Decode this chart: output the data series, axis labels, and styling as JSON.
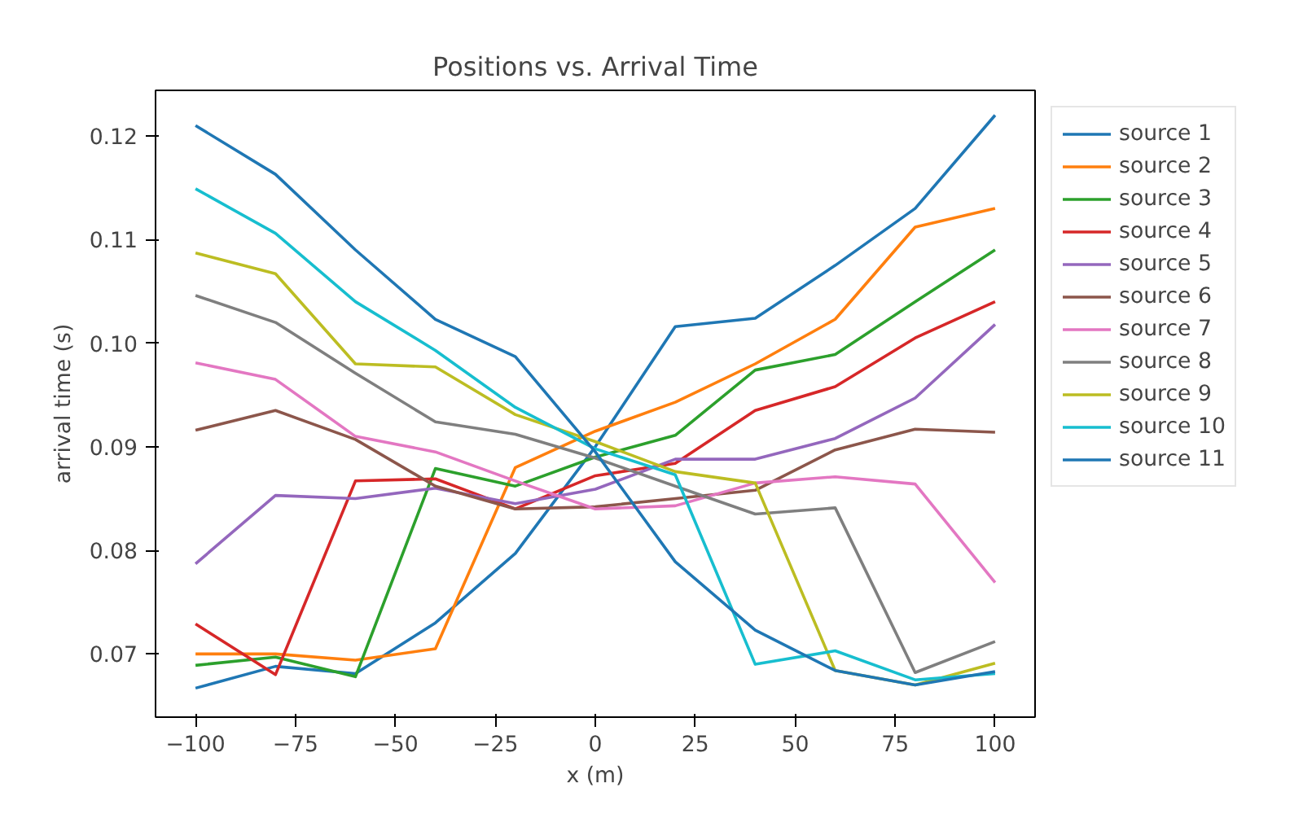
{
  "chart_data": {
    "type": "line",
    "title": "Positions vs. Arrival Time",
    "xlabel": "x (m)",
    "ylabel": "arrival time (s)",
    "x": [
      -100,
      -80,
      -60,
      -40,
      -20,
      0,
      20,
      40,
      60,
      80,
      100
    ],
    "xlim": [
      -110,
      110
    ],
    "xticks": [
      -100,
      -75,
      -50,
      -25,
      0,
      25,
      50,
      75,
      100
    ],
    "ylim": [
      0.0639,
      0.1244
    ],
    "yticks": [
      {
        "value": 0.07,
        "label": "0.07"
      },
      {
        "value": 0.08,
        "label": "0.08"
      },
      {
        "value": 0.09,
        "label": "0.09"
      },
      {
        "value": 0.1,
        "label": "0.10"
      },
      {
        "value": 0.11,
        "label": "0.11"
      },
      {
        "value": 0.12,
        "label": "0.12"
      }
    ],
    "grid": false,
    "legend": "right",
    "marker": "none",
    "line_style": "solid",
    "series": [
      {
        "name": "source 1",
        "color": "#1f77b4",
        "values": [
          0.0667,
          0.0688,
          0.0681,
          0.073,
          0.0797,
          0.09,
          0.1016,
          0.1024,
          0.1075,
          0.113,
          0.122
        ]
      },
      {
        "name": "source 2",
        "color": "#ff7f0e",
        "values": [
          0.07,
          0.07,
          0.0694,
          0.0705,
          0.088,
          0.0915,
          0.0943,
          0.098,
          0.1023,
          0.1112,
          0.113
        ]
      },
      {
        "name": "source 3",
        "color": "#2ca02c",
        "values": [
          0.0689,
          0.0697,
          0.0678,
          0.0879,
          0.0862,
          0.089,
          0.0911,
          0.0974,
          0.0989,
          0.104,
          0.109
        ]
      },
      {
        "name": "source 4",
        "color": "#d62728",
        "values": [
          0.0729,
          0.068,
          0.0867,
          0.0869,
          0.084,
          0.0872,
          0.0884,
          0.0935,
          0.0958,
          0.1005,
          0.104
        ]
      },
      {
        "name": "source 5",
        "color": "#9467bd",
        "values": [
          0.0787,
          0.0853,
          0.085,
          0.086,
          0.0845,
          0.0859,
          0.0888,
          0.0888,
          0.0908,
          0.0947,
          0.1018
        ]
      },
      {
        "name": "source 6",
        "color": "#8c564b",
        "values": [
          0.0916,
          0.0935,
          0.0907,
          0.0862,
          0.084,
          0.0842,
          0.085,
          0.0858,
          0.0897,
          0.0917,
          0.0914
        ]
      },
      {
        "name": "source 7",
        "color": "#e377c2",
        "values": [
          0.0981,
          0.0965,
          0.091,
          0.0895,
          0.0867,
          0.084,
          0.0843,
          0.0865,
          0.0871,
          0.0864,
          0.0769
        ]
      },
      {
        "name": "source 8",
        "color": "#7f7f7f",
        "values": [
          0.1046,
          0.102,
          0.0971,
          0.0924,
          0.0912,
          0.0889,
          0.0862,
          0.0835,
          0.0841,
          0.0682,
          0.0712
        ]
      },
      {
        "name": "source 9",
        "color": "#bcbd22",
        "values": [
          0.1087,
          0.1067,
          0.098,
          0.0977,
          0.0931,
          0.0905,
          0.0876,
          0.0865,
          0.0684,
          0.067,
          0.0691
        ]
      },
      {
        "name": "source 10",
        "color": "#17becf",
        "values": [
          0.1149,
          0.1106,
          0.104,
          0.0993,
          0.0938,
          0.0898,
          0.0873,
          0.069,
          0.0703,
          0.0675,
          0.0681
        ]
      },
      {
        "name": "source 11",
        "color": "#1f77b4",
        "values": [
          0.121,
          0.1163,
          0.109,
          0.1023,
          0.0987,
          0.0895,
          0.0789,
          0.0723,
          0.0684,
          0.067,
          0.0683
        ]
      }
    ]
  }
}
